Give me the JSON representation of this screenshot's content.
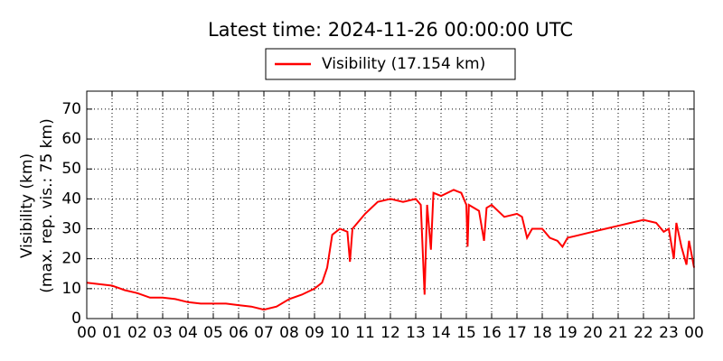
{
  "chart_data": {
    "type": "line",
    "title": "Latest time: 2024-11-26 00:00:00 UTC",
    "ylabel": [
      "Visibility (km)",
      "(max. rep. vis.: 75 km)"
    ],
    "xlim": [
      0,
      24
    ],
    "ylim": [
      0,
      76
    ],
    "xticks": [
      {
        "value": 0,
        "label": "00"
      },
      {
        "value": 1,
        "label": "01"
      },
      {
        "value": 2,
        "label": "02"
      },
      {
        "value": 3,
        "label": "03"
      },
      {
        "value": 4,
        "label": "04"
      },
      {
        "value": 5,
        "label": "05"
      },
      {
        "value": 6,
        "label": "06"
      },
      {
        "value": 7,
        "label": "07"
      },
      {
        "value": 8,
        "label": "08"
      },
      {
        "value": 9,
        "label": "09"
      },
      {
        "value": 10,
        "label": "10"
      },
      {
        "value": 11,
        "label": "11"
      },
      {
        "value": 12,
        "label": "12"
      },
      {
        "value": 13,
        "label": "13"
      },
      {
        "value": 14,
        "label": "14"
      },
      {
        "value": 15,
        "label": "15"
      },
      {
        "value": 16,
        "label": "16"
      },
      {
        "value": 17,
        "label": "17"
      },
      {
        "value": 18,
        "label": "18"
      },
      {
        "value": 19,
        "label": "19"
      },
      {
        "value": 20,
        "label": "20"
      },
      {
        "value": 21,
        "label": "21"
      },
      {
        "value": 22,
        "label": "22"
      },
      {
        "value": 23,
        "label": "23"
      },
      {
        "value": 24,
        "label": "00"
      }
    ],
    "yticks": [
      0,
      10,
      20,
      30,
      40,
      50,
      60,
      70
    ],
    "grid": true,
    "legend": "top",
    "series": [
      {
        "name": "Visibility (17.154 km)",
        "color": "#ff0000",
        "x": [
          0,
          0.5,
          1,
          1.5,
          2,
          2.5,
          3,
          3.5,
          4,
          4.5,
          5,
          5.5,
          6,
          6.5,
          7,
          7.5,
          8,
          8.5,
          9,
          9.3,
          9.5,
          9.7,
          10,
          10.3,
          10.4,
          10.5,
          11,
          11.5,
          12,
          12.5,
          13,
          13.2,
          13.35,
          13.45,
          13.6,
          13.7,
          14,
          14.5,
          14.8,
          15,
          15.05,
          15.1,
          15.5,
          15.7,
          15.8,
          16,
          16.5,
          17,
          17.2,
          17.4,
          17.6,
          18,
          18.3,
          18.6,
          18.8,
          19,
          19.5,
          20,
          20.5,
          21,
          21.5,
          22,
          22.5,
          22.8,
          23,
          23.2,
          23.3,
          23.5,
          23.7,
          23.8,
          24
        ],
        "values": [
          12,
          11.5,
          11,
          9.5,
          8.5,
          7,
          7,
          6.5,
          5.5,
          5,
          5,
          5,
          4.5,
          4,
          3,
          4,
          6.5,
          8,
          10,
          12,
          17,
          28,
          30,
          29,
          19,
          30,
          35,
          39,
          40,
          39,
          40,
          38,
          8,
          38,
          23,
          42,
          41,
          43,
          42,
          38,
          24,
          38,
          36,
          26,
          37,
          38,
          34,
          35,
          34,
          27,
          30,
          30,
          27,
          26,
          24,
          27,
          28,
          29,
          30,
          31,
          32,
          33,
          32,
          29,
          30,
          20,
          32,
          24,
          18,
          26,
          17
        ]
      }
    ]
  }
}
